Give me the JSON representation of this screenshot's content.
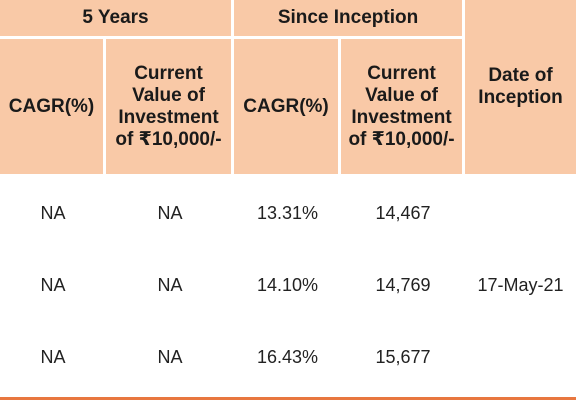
{
  "header": {
    "five_years": "5 Years",
    "since_inception": "Since Inception",
    "date_of_inception": "Date of Inception",
    "cagr": "CAGR(%)",
    "current_value": "Current Value of Investment of ₹10,000/-"
  },
  "rows": [
    {
      "cagr_5y": "NA",
      "value_5y": "NA",
      "cagr_si": "13.31%",
      "value_si": "14,467"
    },
    {
      "cagr_5y": "NA",
      "value_5y": "NA",
      "cagr_si": "14.10%",
      "value_si": "14,769"
    },
    {
      "cagr_5y": "NA",
      "value_5y": "NA",
      "cagr_si": "16.43%",
      "value_si": "15,677"
    }
  ],
  "date_of_inception_value": "17-May-21",
  "colors": {
    "header_bg": "#f9c9a7",
    "rule": "#e8773f"
  }
}
